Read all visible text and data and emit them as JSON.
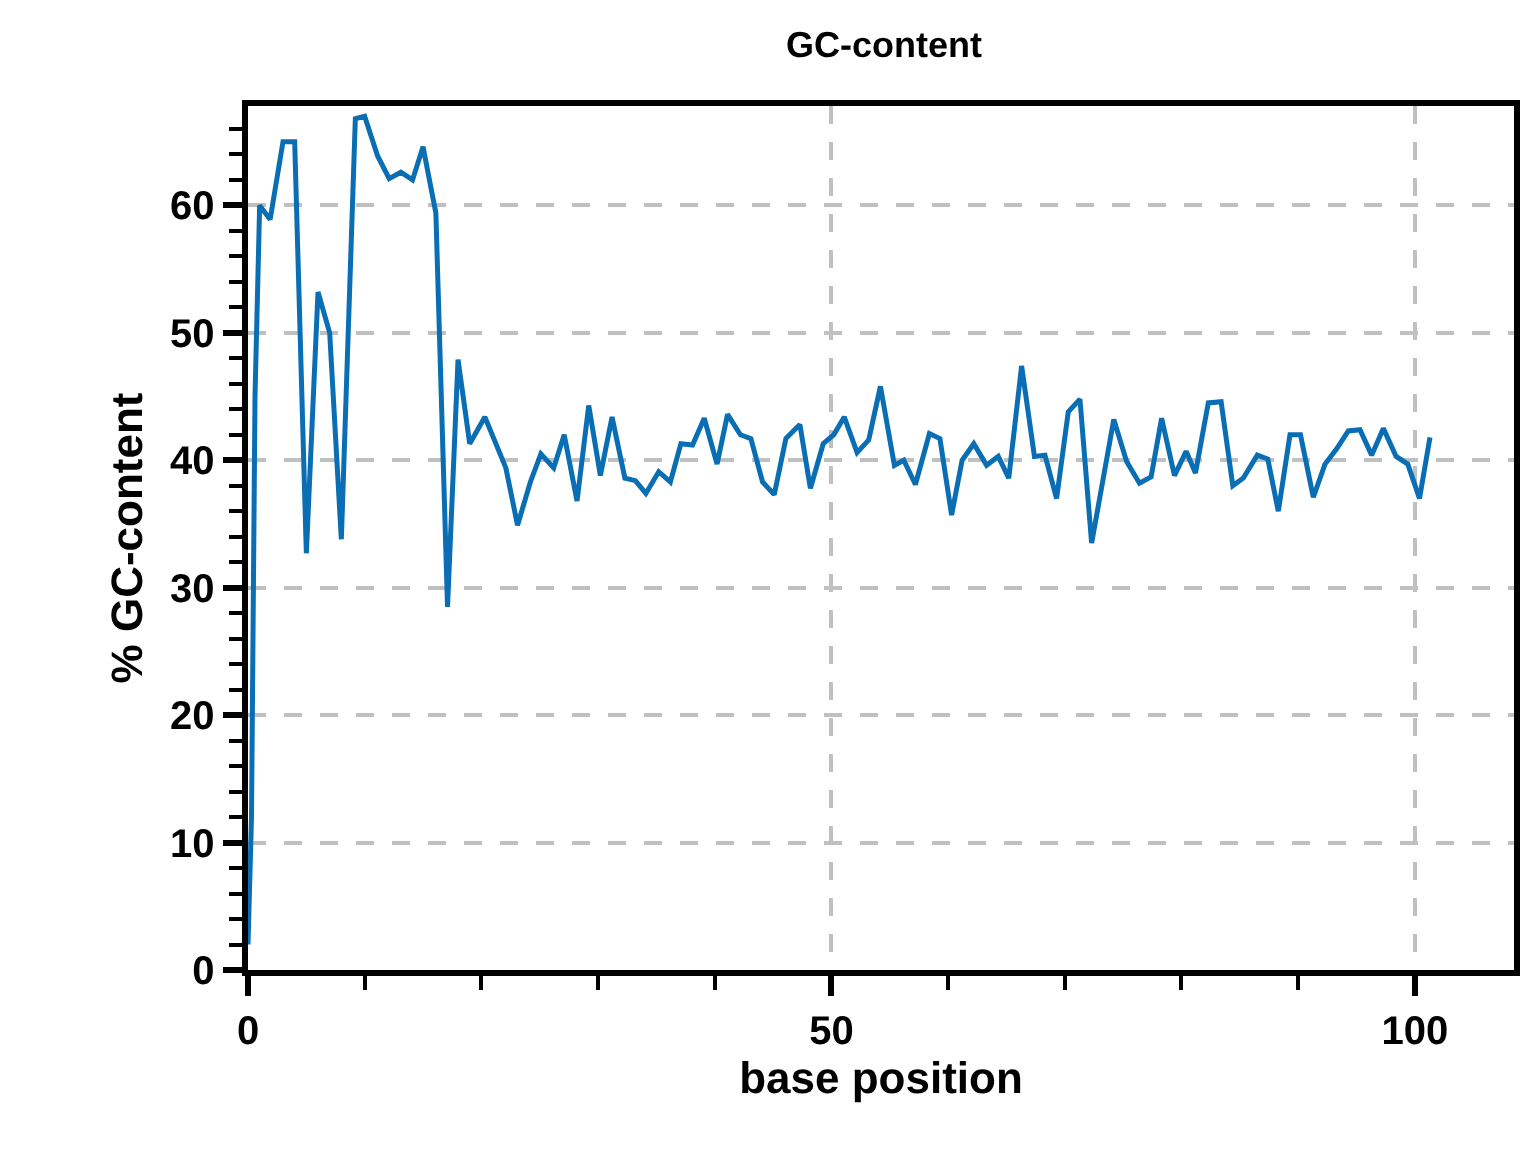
{
  "chart_data": {
    "type": "line",
    "title": "GC-content",
    "xlabel": "base position",
    "ylabel": "% GC-content",
    "x": [
      0,
      0.3,
      0.6,
      1.0,
      1.9,
      3.0,
      4.0,
      5.0,
      6.0,
      7.0,
      8.0,
      9.2,
      10.0,
      11.1,
      12.1,
      13.1,
      14.1,
      15.0,
      16.1,
      17.1,
      18.0,
      19.0,
      20.3,
      22.1,
      23.1,
      24.2,
      25.1,
      26.2,
      27.1,
      28.2,
      29.2,
      30.2,
      31.2,
      32.3,
      33.2,
      34.1,
      35.2,
      36.2,
      37.1,
      38.1,
      39.1,
      40.2,
      41.1,
      42.2,
      43.1,
      44.1,
      45.1,
      46.1,
      47.3,
      48.2,
      49.3,
      50.2,
      51.1,
      52.2,
      53.2,
      54.2,
      55.4,
      56.2,
      57.2,
      58.4,
      59.3,
      60.3,
      61.2,
      62.2,
      63.3,
      64.3,
      65.2,
      66.3,
      67.4,
      68.3,
      69.3,
      70.3,
      71.3,
      72.3,
      73.3,
      74.2,
      75.3,
      76.4,
      77.4,
      78.3,
      79.4,
      80.4,
      81.2,
      82.3,
      83.4,
      84.4,
      85.3,
      86.5,
      87.4,
      88.3,
      89.3,
      90.2,
      91.3,
      92.3,
      93.3,
      94.3,
      95.3,
      96.3,
      97.3,
      98.4,
      99.4,
      100.4,
      101.3
    ],
    "series": [
      {
        "color": "#0a6eb4",
        "values": [
          2,
          12,
          45,
          60,
          58.9,
          65,
          65,
          32.7,
          53.2,
          50,
          33.8,
          66.8,
          67,
          63.9,
          62.1,
          62.6,
          62,
          64.6,
          59.4,
          28.5,
          47.9,
          41.3,
          43.4,
          39.4,
          34.9,
          38.3,
          40.5,
          39.4,
          42,
          36.8,
          44.3,
          38.8,
          43.4,
          38.6,
          38.4,
          37.4,
          39.1,
          38.3,
          41.3,
          41.2,
          43.3,
          39.7,
          43.6,
          42,
          41.7,
          38.3,
          37.3,
          41.7,
          42.8,
          37.8,
          41.3,
          42,
          43.4,
          40.6,
          41.6,
          45.8,
          39.6,
          40,
          38.1,
          42.1,
          41.7,
          35.7,
          40,
          41.3,
          39.6,
          40.3,
          38.6,
          47.4,
          40.3,
          40.4,
          37,
          43.8,
          44.8,
          33.5,
          38.6,
          43.2,
          39.9,
          38.2,
          38.7,
          43.3,
          38.8,
          40.7,
          39,
          44.5,
          44.6,
          38,
          38.6,
          40.4,
          40.1,
          36,
          42,
          42,
          37.1,
          39.7,
          40.9,
          42.3,
          42.4,
          40.4,
          42.5,
          40.3,
          39.7,
          37,
          41.8
        ]
      }
    ],
    "xlim": [
      0,
      108.5
    ],
    "ylim": [
      0,
      67.8
    ],
    "xticks": [
      0,
      50,
      100
    ],
    "yticks": [
      0,
      10,
      20,
      30,
      40,
      50,
      60
    ],
    "grid": true,
    "marker": "none",
    "line_style": "solid"
  }
}
